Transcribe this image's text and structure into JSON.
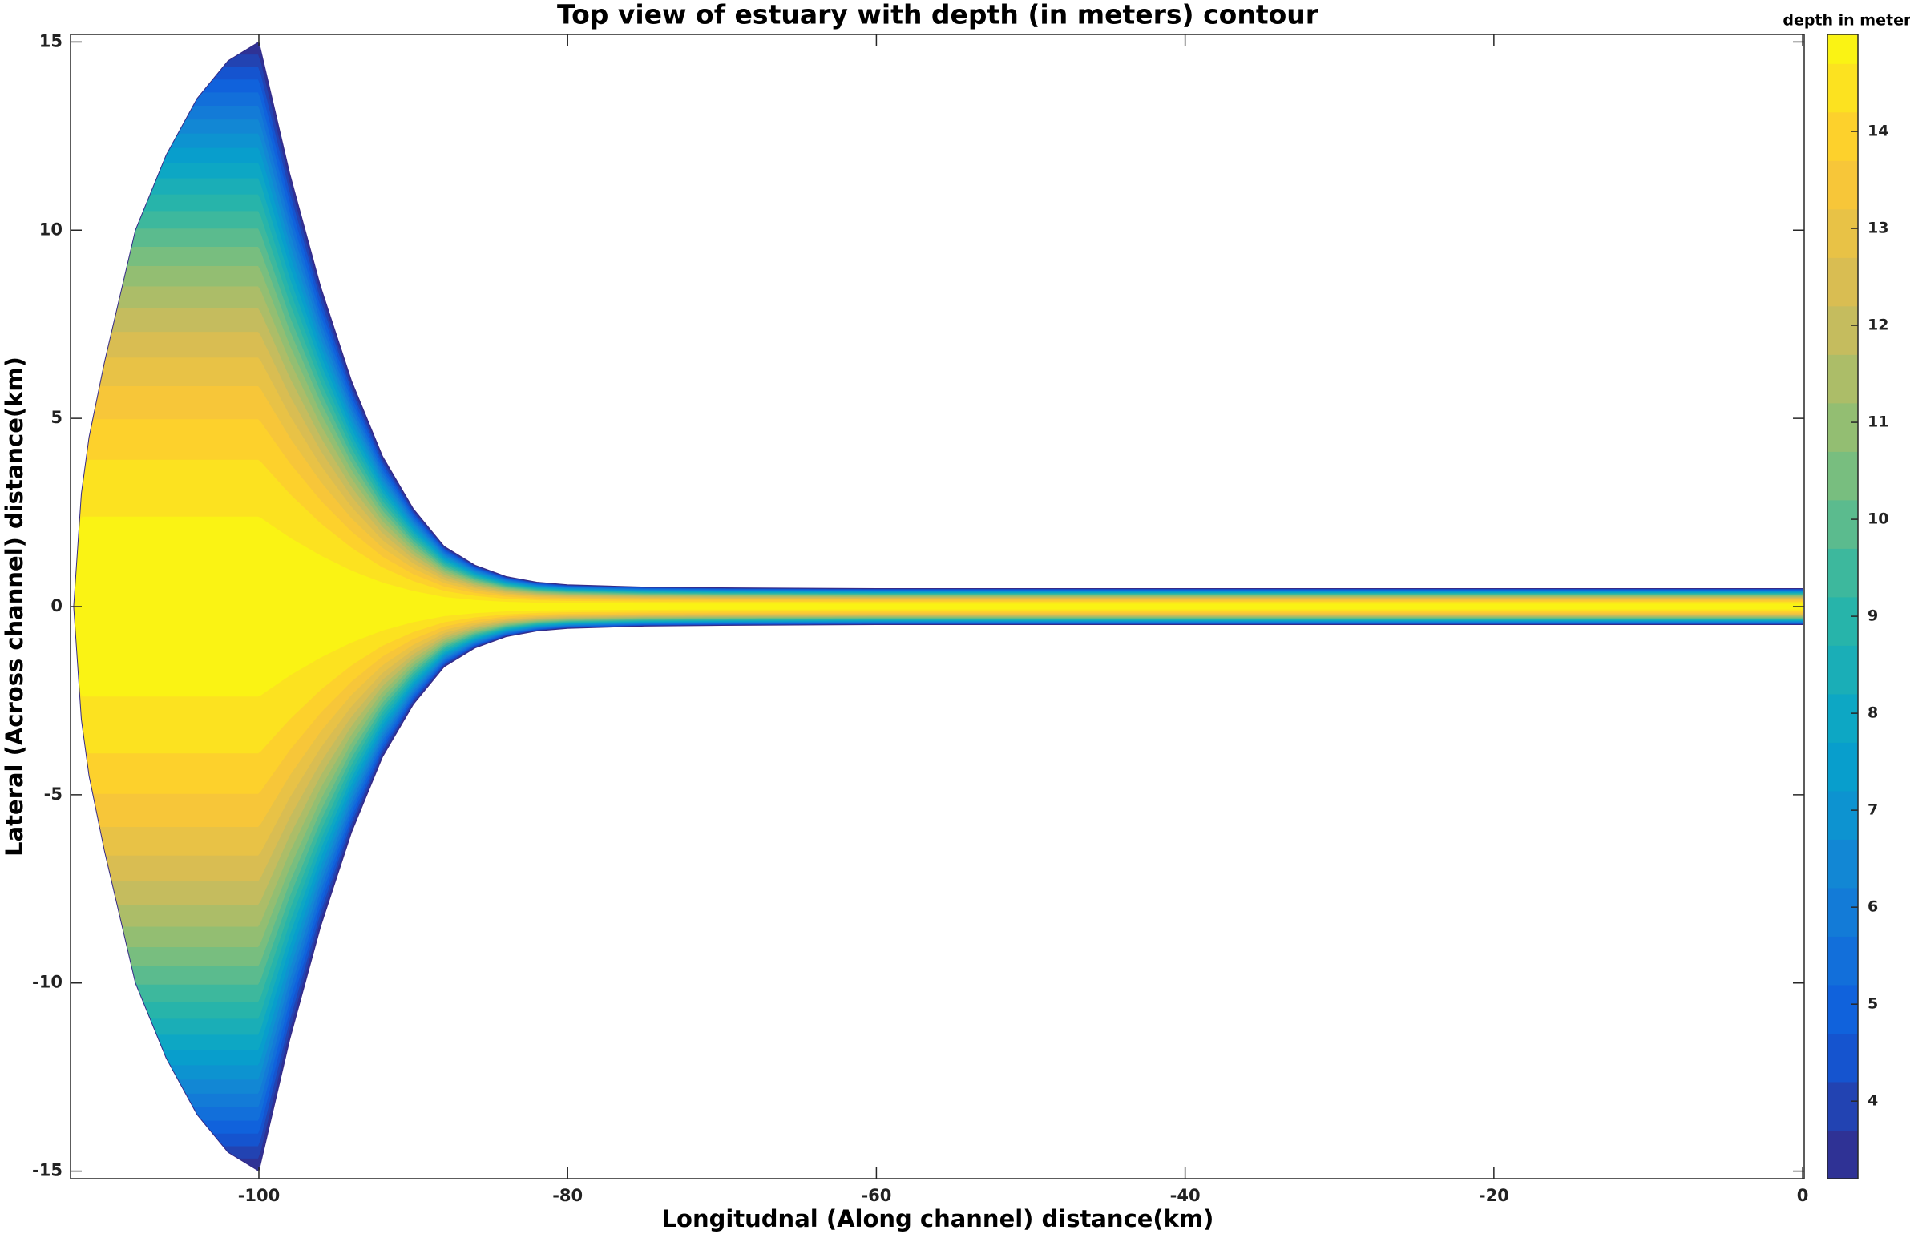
{
  "chart_data": {
    "type": "contourf",
    "title": "Top view of estuary with depth (in meters) contour",
    "x_label": "Longitudnal (Along channel) distance(km)",
    "y_label": "Lateral (Across channel) distance(km)",
    "colorbar_label": "depth in meters",
    "x": [
      -112,
      -111.5,
      -111,
      -110,
      -108,
      -106,
      -104,
      -102,
      -100,
      -98,
      -96,
      -94,
      -92,
      -90,
      -88,
      -86,
      -84,
      -82,
      -80,
      -75,
      -70,
      -60,
      0
    ],
    "half_width": [
      0,
      3,
      4.5,
      6.5,
      10,
      12,
      13.5,
      14.5,
      15,
      11.5,
      8.5,
      6,
      4,
      2.6,
      1.6,
      1.1,
      0.8,
      0.65,
      0.58,
      0.52,
      0.5,
      0.48,
      0.48
    ],
    "levels": [
      3.2,
      3.7,
      4.2,
      4.7,
      5.2,
      5.7,
      6.2,
      6.7,
      7.2,
      7.7,
      8.2,
      8.7,
      9.2,
      9.7,
      10.2,
      10.7,
      11.2,
      11.7,
      12.2,
      12.7,
      13.2,
      13.7,
      14.2,
      14.7
    ],
    "colormap": [
      "#352a87",
      "#0f5cdd",
      "#1481d6",
      "#06a4ca",
      "#2eb7a4",
      "#87bf77",
      "#d1bb59",
      "#fec832",
      "#f9fb0e"
    ],
    "xlim": [
      -112.2,
      0.1
    ],
    "ylim": [
      -15.2,
      15.2
    ],
    "clim": [
      3.2,
      15
    ],
    "xticks": [
      -100,
      -80,
      -60,
      -40,
      -20,
      0
    ],
    "yticks": [
      -15,
      -10,
      -5,
      0,
      5,
      10,
      15
    ],
    "cticks": [
      4,
      5,
      6,
      7,
      8,
      9,
      10,
      11,
      12,
      13,
      14
    ]
  }
}
